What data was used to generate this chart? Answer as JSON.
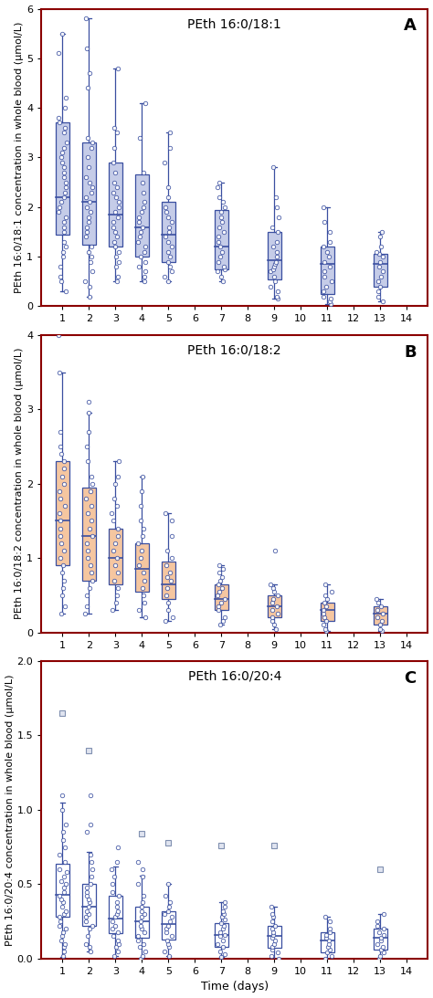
{
  "panels": [
    {
      "label": "A",
      "title": "PEth 16:0/18:1",
      "ylabel": "PEth 16:0/18:1 concentration in whole blood (μmol/L)",
      "ylim": [
        0,
        6
      ],
      "yticks": [
        0,
        1,
        2,
        3,
        4,
        5,
        6
      ],
      "ytick_labels": [
        "0",
        "1",
        "2",
        "3",
        "4",
        "5",
        "6"
      ],
      "days": [
        1,
        2,
        3,
        4,
        5,
        7,
        9,
        11,
        13
      ],
      "box_facecolor": "#c5cce8",
      "box_edgecolor": "#3a4fa0",
      "box_data": {
        "1": {
          "q1": 1.45,
          "median": 2.2,
          "q3": 3.7,
          "whislo": 0.3,
          "whishi": 5.5
        },
        "2": {
          "q1": 1.25,
          "median": 2.1,
          "q3": 3.3,
          "whislo": 0.2,
          "whishi": 5.8
        },
        "3": {
          "q1": 1.2,
          "median": 1.85,
          "q3": 2.9,
          "whislo": 0.5,
          "whishi": 4.8
        },
        "4": {
          "q1": 1.0,
          "median": 1.6,
          "q3": 2.65,
          "whislo": 0.5,
          "whishi": 4.1
        },
        "5": {
          "q1": 0.9,
          "median": 1.45,
          "q3": 2.1,
          "whislo": 0.5,
          "whishi": 3.5
        },
        "7": {
          "q1": 0.75,
          "median": 1.2,
          "q3": 1.95,
          "whislo": 0.5,
          "whishi": 2.5
        },
        "9": {
          "q1": 0.55,
          "median": 0.92,
          "q3": 1.5,
          "whislo": 0.15,
          "whishi": 2.8
        },
        "11": {
          "q1": 0.25,
          "median": 0.85,
          "q3": 1.2,
          "whislo": 0.05,
          "whishi": 2.0
        },
        "13": {
          "q1": 0.4,
          "median": 0.85,
          "q3": 1.05,
          "whislo": 0.1,
          "whishi": 1.5
        }
      },
      "scatter_data": {
        "1": [
          0.3,
          0.5,
          0.6,
          0.8,
          1.0,
          1.1,
          1.2,
          1.3,
          1.5,
          1.6,
          1.7,
          1.8,
          1.9,
          2.0,
          2.1,
          2.2,
          2.3,
          2.4,
          2.5,
          2.6,
          2.7,
          2.8,
          2.9,
          3.0,
          3.1,
          3.2,
          3.3,
          3.5,
          3.6,
          3.7,
          3.8,
          4.0,
          4.2,
          5.1,
          5.5
        ],
        "2": [
          0.2,
          0.4,
          0.5,
          0.7,
          0.9,
          1.0,
          1.1,
          1.2,
          1.4,
          1.5,
          1.6,
          1.7,
          1.8,
          1.9,
          2.0,
          2.1,
          2.2,
          2.3,
          2.4,
          2.5,
          2.6,
          2.8,
          3.0,
          3.2,
          3.3,
          3.4,
          4.4,
          4.7,
          5.2,
          5.8
        ],
        "3": [
          0.5,
          0.6,
          0.8,
          0.9,
          1.0,
          1.1,
          1.2,
          1.3,
          1.4,
          1.5,
          1.6,
          1.7,
          1.8,
          1.9,
          2.0,
          2.1,
          2.2,
          2.3,
          2.4,
          2.5,
          2.7,
          2.9,
          3.2,
          3.5,
          3.6,
          4.8
        ],
        "4": [
          0.5,
          0.6,
          0.7,
          0.8,
          0.9,
          1.0,
          1.1,
          1.2,
          1.3,
          1.4,
          1.5,
          1.6,
          1.7,
          1.8,
          1.9,
          2.0,
          2.1,
          2.3,
          2.5,
          2.7,
          3.4,
          4.1
        ],
        "5": [
          0.5,
          0.6,
          0.7,
          0.8,
          0.9,
          1.0,
          1.1,
          1.2,
          1.3,
          1.4,
          1.5,
          1.6,
          1.7,
          1.8,
          1.9,
          2.0,
          2.2,
          2.4,
          2.9,
          3.2,
          3.5
        ],
        "7": [
          0.5,
          0.6,
          0.7,
          0.75,
          0.8,
          0.9,
          1.0,
          1.1,
          1.2,
          1.3,
          1.4,
          1.5,
          1.6,
          1.7,
          1.8,
          1.9,
          2.0,
          2.1,
          2.2,
          2.4,
          2.5
        ],
        "9": [
          0.15,
          0.2,
          0.3,
          0.4,
          0.5,
          0.6,
          0.7,
          0.75,
          0.8,
          0.85,
          0.9,
          1.0,
          1.1,
          1.2,
          1.3,
          1.5,
          1.6,
          1.8,
          2.0,
          2.2,
          2.8
        ],
        "11": [
          0.05,
          0.1,
          0.15,
          0.2,
          0.3,
          0.4,
          0.5,
          0.6,
          0.7,
          0.8,
          0.9,
          1.0,
          1.1,
          1.2,
          1.3,
          1.5,
          1.7,
          2.0
        ],
        "13": [
          0.1,
          0.2,
          0.3,
          0.4,
          0.5,
          0.6,
          0.7,
          0.8,
          0.9,
          1.0,
          1.05,
          1.1,
          1.2,
          1.4,
          1.5
        ]
      }
    },
    {
      "label": "B",
      "title": "PEth 16:0/18:2",
      "ylabel": "PEth 16:0/18:2 concentration in whole blood (μmol/L)",
      "ylim": [
        0,
        4
      ],
      "yticks": [
        0,
        1,
        2,
        3,
        4
      ],
      "ytick_labels": [
        "0",
        "1",
        "2",
        "3",
        "4"
      ],
      "days": [
        1,
        2,
        3,
        4,
        5,
        7,
        9,
        11,
        13
      ],
      "box_facecolor": "#f5c6a0",
      "box_edgecolor": "#3a4fa0",
      "box_data": {
        "1": {
          "q1": 0.9,
          "median": 1.5,
          "q3": 2.3,
          "whislo": 0.25,
          "whishi": 3.5
        },
        "2": {
          "q1": 0.7,
          "median": 1.3,
          "q3": 1.95,
          "whislo": 0.25,
          "whishi": 2.95
        },
        "3": {
          "q1": 0.65,
          "median": 1.0,
          "q3": 1.4,
          "whislo": 0.3,
          "whishi": 2.3
        },
        "4": {
          "q1": 0.55,
          "median": 0.85,
          "q3": 1.2,
          "whislo": 0.2,
          "whishi": 2.1
        },
        "5": {
          "q1": 0.45,
          "median": 0.65,
          "q3": 0.95,
          "whislo": 0.15,
          "whishi": 1.6
        },
        "7": {
          "q1": 0.3,
          "median": 0.45,
          "q3": 0.65,
          "whislo": 0.1,
          "whishi": 0.9
        },
        "9": {
          "q1": 0.2,
          "median": 0.35,
          "q3": 0.5,
          "whislo": 0.05,
          "whishi": 0.65
        },
        "11": {
          "q1": 0.15,
          "median": 0.3,
          "q3": 0.4,
          "whislo": 0.02,
          "whishi": 0.65
        },
        "13": {
          "q1": 0.1,
          "median": 0.25,
          "q3": 0.35,
          "whislo": 0.02,
          "whishi": 0.45
        }
      },
      "scatter_data": {
        "1": [
          0.25,
          0.35,
          0.5,
          0.6,
          0.7,
          0.8,
          0.9,
          1.0,
          1.1,
          1.2,
          1.3,
          1.4,
          1.5,
          1.6,
          1.7,
          1.8,
          1.9,
          2.0,
          2.1,
          2.2,
          2.3,
          2.4,
          2.5,
          2.7,
          3.5,
          4.0
        ],
        "2": [
          0.25,
          0.35,
          0.5,
          0.6,
          0.7,
          0.8,
          0.9,
          1.0,
          1.1,
          1.2,
          1.3,
          1.4,
          1.5,
          1.6,
          1.7,
          1.8,
          1.9,
          2.0,
          2.1,
          2.3,
          2.5,
          2.7,
          2.95,
          3.1
        ],
        "3": [
          0.3,
          0.4,
          0.5,
          0.6,
          0.7,
          0.8,
          0.9,
          1.0,
          1.1,
          1.2,
          1.3,
          1.4,
          1.5,
          1.6,
          1.7,
          1.8,
          2.0,
          2.1,
          2.3
        ],
        "4": [
          0.2,
          0.3,
          0.4,
          0.5,
          0.6,
          0.7,
          0.8,
          0.9,
          1.0,
          1.1,
          1.2,
          1.3,
          1.4,
          1.5,
          1.7,
          1.9,
          2.1
        ],
        "5": [
          0.15,
          0.2,
          0.3,
          0.4,
          0.5,
          0.6,
          0.7,
          0.75,
          0.8,
          0.9,
          1.0,
          1.1,
          1.3,
          1.5,
          1.6
        ],
        "7": [
          0.1,
          0.15,
          0.2,
          0.3,
          0.35,
          0.4,
          0.45,
          0.5,
          0.55,
          0.6,
          0.65,
          0.7,
          0.75,
          0.8,
          0.85,
          0.9
        ],
        "9": [
          0.05,
          0.1,
          0.15,
          0.2,
          0.25,
          0.3,
          0.35,
          0.4,
          0.45,
          0.5,
          0.55,
          0.6,
          0.65,
          1.1
        ],
        "11": [
          0.02,
          0.05,
          0.1,
          0.15,
          0.2,
          0.25,
          0.3,
          0.35,
          0.4,
          0.45,
          0.5,
          0.55,
          0.65
        ],
        "13": [
          0.02,
          0.05,
          0.1,
          0.15,
          0.2,
          0.25,
          0.3,
          0.35,
          0.4,
          0.45
        ]
      }
    },
    {
      "label": "C",
      "title": "PEth 16:0/20:4",
      "ylabel": "PEth 16:0/20:4 concentration in whole blood (μmol/L)",
      "ylim": [
        0,
        2.0
      ],
      "yticks": [
        0.0,
        0.5,
        1.0,
        1.5,
        2.0
      ],
      "ytick_labels": [
        "0.0",
        "0.5",
        "1.0",
        "1.5",
        "2.0"
      ],
      "days": [
        1,
        2,
        3,
        4,
        5,
        7,
        9,
        11,
        13
      ],
      "box_facecolor": "#ffffff",
      "box_edgecolor": "#3a4fa0",
      "box_data": {
        "1": {
          "q1": 0.28,
          "median": 0.43,
          "q3": 0.64,
          "whislo": 0.01,
          "whishi": 1.05
        },
        "2": {
          "q1": 0.22,
          "median": 0.35,
          "q3": 0.5,
          "whislo": 0.05,
          "whishi": 0.72
        },
        "3": {
          "q1": 0.17,
          "median": 0.27,
          "q3": 0.42,
          "whislo": 0.02,
          "whishi": 0.62
        },
        "4": {
          "q1": 0.14,
          "median": 0.25,
          "q3": 0.35,
          "whislo": 0.0,
          "whishi": 0.56
        },
        "5": {
          "q1": 0.13,
          "median": 0.23,
          "q3": 0.32,
          "whislo": 0.02,
          "whishi": 0.5
        },
        "7": {
          "q1": 0.08,
          "median": 0.16,
          "q3": 0.24,
          "whislo": 0.01,
          "whishi": 0.38
        },
        "9": {
          "q1": 0.07,
          "median": 0.15,
          "q3": 0.22,
          "whislo": 0.0,
          "whishi": 0.35
        },
        "11": {
          "q1": 0.04,
          "median": 0.12,
          "q3": 0.18,
          "whislo": 0.0,
          "whishi": 0.28
        },
        "13": {
          "q1": 0.06,
          "median": 0.14,
          "q3": 0.2,
          "whislo": 0.0,
          "whishi": 0.3
        }
      },
      "scatter_data": {
        "1": [
          0.02,
          0.05,
          0.08,
          0.1,
          0.12,
          0.15,
          0.18,
          0.2,
          0.22,
          0.25,
          0.28,
          0.3,
          0.32,
          0.35,
          0.38,
          0.4,
          0.42,
          0.45,
          0.48,
          0.5,
          0.52,
          0.55,
          0.58,
          0.6,
          0.65,
          0.7,
          0.75,
          0.8,
          0.85,
          0.9,
          1.0,
          1.1
        ],
        "2": [
          0.05,
          0.08,
          0.1,
          0.15,
          0.2,
          0.22,
          0.25,
          0.28,
          0.3,
          0.32,
          0.35,
          0.38,
          0.4,
          0.42,
          0.45,
          0.48,
          0.5,
          0.55,
          0.6,
          0.65,
          0.7,
          0.85,
          0.9,
          1.1
        ],
        "3": [
          0.02,
          0.05,
          0.08,
          0.1,
          0.12,
          0.15,
          0.18,
          0.2,
          0.22,
          0.25,
          0.28,
          0.3,
          0.32,
          0.35,
          0.38,
          0.42,
          0.45,
          0.5,
          0.55,
          0.6,
          0.65,
          0.75
        ],
        "4": [
          0.0,
          0.02,
          0.05,
          0.08,
          0.1,
          0.12,
          0.15,
          0.18,
          0.2,
          0.22,
          0.25,
          0.28,
          0.3,
          0.32,
          0.35,
          0.38,
          0.42,
          0.5,
          0.55,
          0.6,
          0.65
        ],
        "5": [
          0.02,
          0.05,
          0.08,
          0.1,
          0.12,
          0.15,
          0.18,
          0.2,
          0.22,
          0.25,
          0.28,
          0.3,
          0.32,
          0.35,
          0.38,
          0.42,
          0.5
        ],
        "7": [
          0.01,
          0.03,
          0.05,
          0.08,
          0.1,
          0.12,
          0.15,
          0.16,
          0.18,
          0.2,
          0.22,
          0.24,
          0.26,
          0.28,
          0.3,
          0.32,
          0.35,
          0.38
        ],
        "9": [
          0.0,
          0.02,
          0.04,
          0.06,
          0.08,
          0.1,
          0.12,
          0.14,
          0.16,
          0.18,
          0.2,
          0.22,
          0.25,
          0.28,
          0.3,
          0.35
        ],
        "11": [
          0.0,
          0.02,
          0.04,
          0.06,
          0.08,
          0.1,
          0.12,
          0.14,
          0.16,
          0.18,
          0.2,
          0.25,
          0.28
        ],
        "13": [
          0.0,
          0.02,
          0.04,
          0.06,
          0.08,
          0.1,
          0.12,
          0.14,
          0.16,
          0.18,
          0.2,
          0.22,
          0.25,
          0.3
        ]
      },
      "square_markers": {
        "1": [
          1.65
        ],
        "2": [
          1.4
        ],
        "4": [
          0.84
        ],
        "5": [
          0.78
        ],
        "7": [
          0.76
        ],
        "9": [
          0.76
        ],
        "13": [
          0.6
        ]
      }
    }
  ],
  "xticks": [
    1,
    2,
    3,
    4,
    5,
    6,
    7,
    8,
    9,
    10,
    11,
    12,
    13,
    14
  ],
  "xlabel": "Time (days)",
  "scatter_color": "#3a4fa0",
  "border_color": "#8b0000",
  "title_fontsize": 10,
  "label_fontsize": 8,
  "tick_fontsize": 8,
  "box_width": 0.5
}
